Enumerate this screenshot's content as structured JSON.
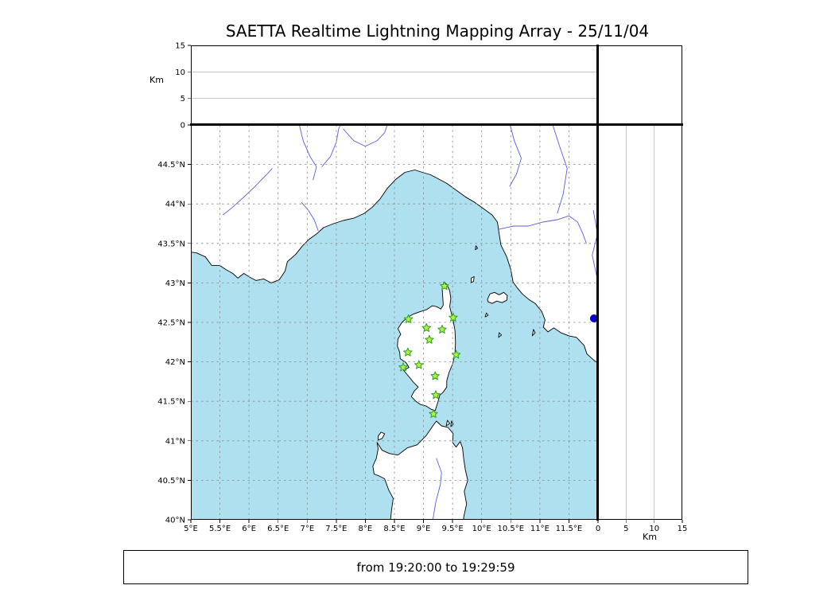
{
  "title": "SAETTA Realtime Lightning Mapping Array - 25/11/04",
  "footer": {
    "text": "from 19:20:00 to 19:29:59"
  },
  "colors": {
    "sea": "#aee0ef",
    "land": "#ffffff",
    "coast": "#000000",
    "river": "#5c5cd6",
    "grid": "#8c8c8c",
    "station_fill": "#b5f23d",
    "station_stroke": "#2e9e2e",
    "source": "#0000cc"
  },
  "map": {
    "lon_min": 5,
    "lon_max": 12,
    "lat_min": 40,
    "lat_max": 45,
    "lon_ticks": [
      {
        "v": 5,
        "label": "5°E"
      },
      {
        "v": 5.5,
        "label": "5.5°E"
      },
      {
        "v": 6,
        "label": "6°E"
      },
      {
        "v": 6.5,
        "label": "6.5°E"
      },
      {
        "v": 7,
        "label": "7°E"
      },
      {
        "v": 7.5,
        "label": "7.5°E"
      },
      {
        "v": 8,
        "label": "8°E"
      },
      {
        "v": 8.5,
        "label": "8.5°E"
      },
      {
        "v": 9,
        "label": "9°E"
      },
      {
        "v": 9.5,
        "label": "9.5°E"
      },
      {
        "v": 10,
        "label": "10°E"
      },
      {
        "v": 10.5,
        "label": "10.5°E"
      },
      {
        "v": 11,
        "label": "11°E"
      },
      {
        "v": 11.5,
        "label": "11.5°E"
      }
    ],
    "lat_ticks": [
      {
        "v": 40,
        "label": "40°N"
      },
      {
        "v": 40.5,
        "label": "40.5°N"
      },
      {
        "v": 41,
        "label": "41°N"
      },
      {
        "v": 41.5,
        "label": "41.5°N"
      },
      {
        "v": 42,
        "label": "42°N"
      },
      {
        "v": 42.5,
        "label": "42.5°N"
      },
      {
        "v": 43,
        "label": "43°N"
      },
      {
        "v": 43.5,
        "label": "43.5°N"
      },
      {
        "v": 44,
        "label": "44°N"
      },
      {
        "v": 44.5,
        "label": "44.5°N"
      }
    ]
  },
  "alt_axis": {
    "label": "Km",
    "max": 15,
    "ticks": [
      0,
      5,
      10,
      15
    ],
    "gridlines": [
      5,
      10
    ]
  },
  "chart_data": {
    "type": "scatter",
    "title": "SAETTA Realtime Lightning Mapping Array - 25/11/04",
    "time_window": {
      "from": "19:20:00",
      "to": "19:29:59"
    },
    "panels": [
      {
        "id": "lon-alt",
        "xlabel": "longitude_deg_E",
        "xlim": [
          5,
          12
        ],
        "ylabel": "altitude_km",
        "ylim": [
          0,
          15
        ],
        "points": []
      },
      {
        "id": "alt-histogram",
        "points": []
      },
      {
        "id": "plan-view",
        "xlabel": "longitude_deg_E",
        "xlim": [
          5,
          12
        ],
        "ylabel": "latitude_deg_N",
        "ylim": [
          40,
          45
        ],
        "points": [
          {
            "lon": 11.93,
            "lat": 42.55,
            "marker": "filled-circle",
            "color": "#0000cc"
          }
        ]
      },
      {
        "id": "lat-alt",
        "xlabel": "altitude_km",
        "xlim": [
          0,
          15
        ],
        "ylabel": "latitude_deg_N",
        "ylim": [
          40,
          45
        ],
        "points": []
      }
    ],
    "stations_lonlat": [
      [
        9.36,
        42.96
      ],
      [
        8.74,
        42.54
      ],
      [
        9.05,
        42.43
      ],
      [
        9.32,
        42.41
      ],
      [
        9.51,
        42.56
      ],
      [
        9.1,
        42.28
      ],
      [
        8.73,
        42.12
      ],
      [
        9.56,
        42.09
      ],
      [
        8.65,
        41.93
      ],
      [
        8.92,
        41.96
      ],
      [
        9.2,
        41.82
      ],
      [
        9.21,
        41.58
      ],
      [
        9.17,
        41.34
      ]
    ],
    "sources_lonlat": [
      [
        11.93,
        42.55
      ]
    ],
    "grid": "dashed 0.5 degree graticule"
  },
  "basemap": {
    "land": [
      [
        [
          4.9,
          45.1
        ],
        [
          4.9,
          43.4
        ],
        [
          5.1,
          43.38
        ],
        [
          5.25,
          43.33
        ],
        [
          5.36,
          43.22
        ],
        [
          5.5,
          43.22
        ],
        [
          5.6,
          43.17
        ],
        [
          5.72,
          43.12
        ],
        [
          5.81,
          43.06
        ],
        [
          5.91,
          43.12
        ],
        [
          6.02,
          43.07
        ],
        [
          6.12,
          43.03
        ],
        [
          6.25,
          43.05
        ],
        [
          6.38,
          43.0
        ],
        [
          6.52,
          43.04
        ],
        [
          6.62,
          43.15
        ],
        [
          6.66,
          43.27
        ],
        [
          6.8,
          43.36
        ],
        [
          6.92,
          43.47
        ],
        [
          7.03,
          43.55
        ],
        [
          7.16,
          43.62
        ],
        [
          7.28,
          43.7
        ],
        [
          7.45,
          43.75
        ],
        [
          7.62,
          43.79
        ],
        [
          7.8,
          43.82
        ],
        [
          7.98,
          43.88
        ],
        [
          8.12,
          43.96
        ],
        [
          8.25,
          44.06
        ],
        [
          8.38,
          44.2
        ],
        [
          8.52,
          44.31
        ],
        [
          8.68,
          44.4
        ],
        [
          8.85,
          44.43
        ],
        [
          8.98,
          44.4
        ],
        [
          9.12,
          44.37
        ],
        [
          9.25,
          44.32
        ],
        [
          9.4,
          44.26
        ],
        [
          9.55,
          44.18
        ],
        [
          9.72,
          44.09
        ],
        [
          9.88,
          44.02
        ],
        [
          10.05,
          43.93
        ],
        [
          10.18,
          43.86
        ],
        [
          10.27,
          43.77
        ],
        [
          10.3,
          43.62
        ],
        [
          10.33,
          43.48
        ],
        [
          10.43,
          43.33
        ],
        [
          10.5,
          43.17
        ],
        [
          10.54,
          43.01
        ],
        [
          10.61,
          42.94
        ],
        [
          10.7,
          42.86
        ],
        [
          10.81,
          42.79
        ],
        [
          10.92,
          42.74
        ],
        [
          11.03,
          42.64
        ],
        [
          11.09,
          42.53
        ],
        [
          11.06,
          42.44
        ],
        [
          11.14,
          42.38
        ],
        [
          11.24,
          42.43
        ],
        [
          11.36,
          42.37
        ],
        [
          11.5,
          42.33
        ],
        [
          11.63,
          42.31
        ],
        [
          11.76,
          42.21
        ],
        [
          11.81,
          42.1
        ],
        [
          11.93,
          42.02
        ],
        [
          12.1,
          41.93
        ],
        [
          12.1,
          45.1
        ]
      ],
      [
        [
          9.35,
          43.01
        ],
        [
          9.4,
          42.98
        ],
        [
          9.45,
          42.9
        ],
        [
          9.47,
          42.8
        ],
        [
          9.45,
          42.7
        ],
        [
          9.48,
          42.61
        ],
        [
          9.51,
          42.52
        ],
        [
          9.54,
          42.4
        ],
        [
          9.55,
          42.25
        ],
        [
          9.54,
          42.1
        ],
        [
          9.5,
          41.97
        ],
        [
          9.44,
          41.87
        ],
        [
          9.4,
          41.76
        ],
        [
          9.4,
          41.68
        ],
        [
          9.33,
          41.61
        ],
        [
          9.28,
          41.58
        ],
        [
          9.25,
          41.5
        ],
        [
          9.22,
          41.43
        ],
        [
          9.2,
          41.38
        ],
        [
          9.13,
          41.4
        ],
        [
          9.05,
          41.44
        ],
        [
          8.95,
          41.46
        ],
        [
          8.87,
          41.5
        ],
        [
          8.79,
          41.56
        ],
        [
          8.84,
          41.63
        ],
        [
          8.91,
          41.68
        ],
        [
          8.83,
          41.74
        ],
        [
          8.73,
          41.83
        ],
        [
          8.66,
          41.89
        ],
        [
          8.75,
          41.93
        ],
        [
          8.7,
          41.99
        ],
        [
          8.6,
          42.04
        ],
        [
          8.59,
          42.12
        ],
        [
          8.55,
          42.2
        ],
        [
          8.56,
          42.29
        ],
        [
          8.61,
          42.35
        ],
        [
          8.56,
          42.42
        ],
        [
          8.63,
          42.5
        ],
        [
          8.72,
          42.56
        ],
        [
          8.81,
          42.6
        ],
        [
          8.92,
          42.63
        ],
        [
          9.05,
          42.66
        ],
        [
          9.15,
          42.71
        ],
        [
          9.22,
          42.7
        ],
        [
          9.3,
          42.67
        ],
        [
          9.34,
          42.72
        ],
        [
          9.33,
          42.83
        ],
        [
          9.32,
          42.93
        ]
      ],
      [
        [
          8.42,
          39.9
        ],
        [
          8.45,
          40.12
        ],
        [
          8.48,
          40.27
        ],
        [
          8.4,
          40.38
        ],
        [
          8.33,
          40.52
        ],
        [
          8.22,
          40.56
        ],
        [
          8.15,
          40.58
        ],
        [
          8.13,
          40.68
        ],
        [
          8.19,
          40.78
        ],
        [
          8.22,
          40.9
        ],
        [
          8.2,
          40.98
        ],
        [
          8.29,
          40.88
        ],
        [
          8.41,
          40.84
        ],
        [
          8.56,
          40.82
        ],
        [
          8.72,
          40.91
        ],
        [
          8.89,
          40.95
        ],
        [
          9.05,
          41.07
        ],
        [
          9.16,
          41.19
        ],
        [
          9.22,
          41.25
        ],
        [
          9.31,
          41.19
        ],
        [
          9.42,
          41.17
        ],
        [
          9.51,
          41.09
        ],
        [
          9.5,
          40.98
        ],
        [
          9.56,
          40.92
        ],
        [
          9.63,
          40.99
        ],
        [
          9.67,
          40.91
        ],
        [
          9.69,
          40.78
        ],
        [
          9.72,
          40.63
        ],
        [
          9.76,
          40.5
        ],
        [
          9.7,
          40.36
        ],
        [
          9.74,
          40.2
        ],
        [
          9.69,
          40.03
        ],
        [
          9.7,
          39.9
        ]
      ],
      [
        [
          8.22,
          41.01
        ],
        [
          8.29,
          41.03
        ],
        [
          8.33,
          41.09
        ],
        [
          8.27,
          41.11
        ],
        [
          8.22,
          41.06
        ]
      ],
      [
        [
          10.1,
          42.79
        ],
        [
          10.14,
          42.86
        ],
        [
          10.22,
          42.88
        ],
        [
          10.3,
          42.85
        ],
        [
          10.38,
          42.88
        ],
        [
          10.44,
          42.84
        ],
        [
          10.43,
          42.78
        ],
        [
          10.35,
          42.75
        ],
        [
          10.26,
          42.77
        ],
        [
          10.18,
          42.74
        ],
        [
          10.11,
          42.76
        ]
      ],
      [
        [
          9.82,
          43.0
        ],
        [
          9.86,
          43.02
        ],
        [
          9.87,
          43.08
        ],
        [
          9.82,
          43.06
        ]
      ],
      [
        [
          9.89,
          43.42
        ],
        [
          9.93,
          43.44
        ],
        [
          9.9,
          43.47
        ]
      ],
      [
        [
          10.06,
          42.57
        ],
        [
          10.11,
          42.59
        ],
        [
          10.08,
          42.62
        ]
      ],
      [
        [
          10.29,
          42.31
        ],
        [
          10.34,
          42.34
        ],
        [
          10.3,
          42.37
        ]
      ],
      [
        [
          10.87,
          42.33
        ],
        [
          10.92,
          42.37
        ],
        [
          10.89,
          42.41
        ]
      ],
      [
        [
          9.39,
          41.19
        ],
        [
          9.45,
          41.22
        ],
        [
          9.41,
          41.26
        ]
      ],
      [
        [
          9.47,
          41.18
        ],
        [
          9.51,
          41.21
        ],
        [
          9.48,
          41.25
        ]
      ]
    ],
    "rivers": [
      [
        [
          5.55,
          43.86
        ],
        [
          5.72,
          43.96
        ],
        [
          5.9,
          44.08
        ],
        [
          6.1,
          44.22
        ],
        [
          6.3,
          44.37
        ],
        [
          6.4,
          44.45
        ]
      ],
      [
        [
          6.85,
          45.05
        ],
        [
          6.93,
          44.8
        ],
        [
          7.05,
          44.6
        ],
        [
          7.16,
          44.47
        ],
        [
          7.1,
          44.3
        ]
      ],
      [
        [
          7.25,
          44.47
        ],
        [
          7.4,
          44.6
        ],
        [
          7.5,
          44.78
        ],
        [
          7.54,
          44.95
        ],
        [
          7.6,
          45.05
        ]
      ],
      [
        [
          7.62,
          44.95
        ],
        [
          7.8,
          44.8
        ],
        [
          8.0,
          44.73
        ],
        [
          8.2,
          44.8
        ],
        [
          8.33,
          44.9
        ],
        [
          8.4,
          45.05
        ]
      ],
      [
        [
          7.19,
          43.66
        ],
        [
          7.12,
          43.8
        ],
        [
          7.02,
          43.92
        ],
        [
          6.9,
          44.02
        ]
      ],
      [
        [
          10.3,
          43.68
        ],
        [
          10.55,
          43.72
        ],
        [
          10.8,
          43.72
        ],
        [
          11.05,
          43.77
        ],
        [
          11.3,
          43.8
        ],
        [
          11.5,
          43.85
        ],
        [
          11.65,
          43.77
        ],
        [
          11.74,
          43.62
        ],
        [
          11.8,
          43.5
        ]
      ],
      [
        [
          10.47,
          45.05
        ],
        [
          10.56,
          44.8
        ],
        [
          10.68,
          44.58
        ],
        [
          10.6,
          44.38
        ],
        [
          10.48,
          44.22
        ]
      ],
      [
        [
          11.2,
          45.05
        ],
        [
          11.33,
          44.75
        ],
        [
          11.47,
          44.45
        ],
        [
          11.4,
          44.12
        ],
        [
          11.3,
          43.88
        ]
      ],
      [
        [
          11.92,
          43.92
        ],
        [
          11.99,
          43.62
        ],
        [
          11.9,
          43.35
        ],
        [
          11.98,
          43.08
        ],
        [
          12.05,
          42.9
        ]
      ],
      [
        [
          9.15,
          39.95
        ],
        [
          9.21,
          40.22
        ],
        [
          9.29,
          40.45
        ],
        [
          9.31,
          40.6
        ],
        [
          9.22,
          40.78
        ]
      ]
    ]
  }
}
